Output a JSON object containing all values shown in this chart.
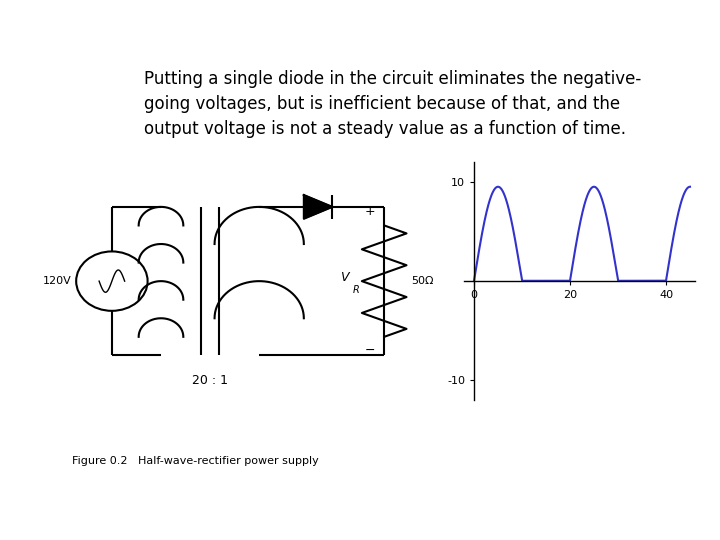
{
  "title_text": "Putting a single diode in the circuit eliminates the negative-\ngoing voltages, but is inefficient because of that, and the\noutput voltage is not a steady value as a function of time.",
  "title_fontsize": 12,
  "background_color": "#ffffff",
  "fig_caption": "Figure 0.2   Half-wave-rectifier power supply",
  "transformer_ratio": "20 : 1",
  "source_label": "120V",
  "resistor_label": "50Ω",
  "vr_label": "V",
  "vr_subscript": "R",
  "plus_label": "+",
  "minus_label": "−",
  "waveform_ylim": [
    -12,
    12
  ],
  "waveform_xlim": [
    -2,
    46
  ],
  "waveform_yticks": [
    -10,
    10
  ],
  "waveform_xticks": [
    0,
    20,
    40
  ],
  "waveform_color": "#3333cc",
  "waveform_linewidth": 1.5,
  "period": 20,
  "amplitude": 9.5
}
